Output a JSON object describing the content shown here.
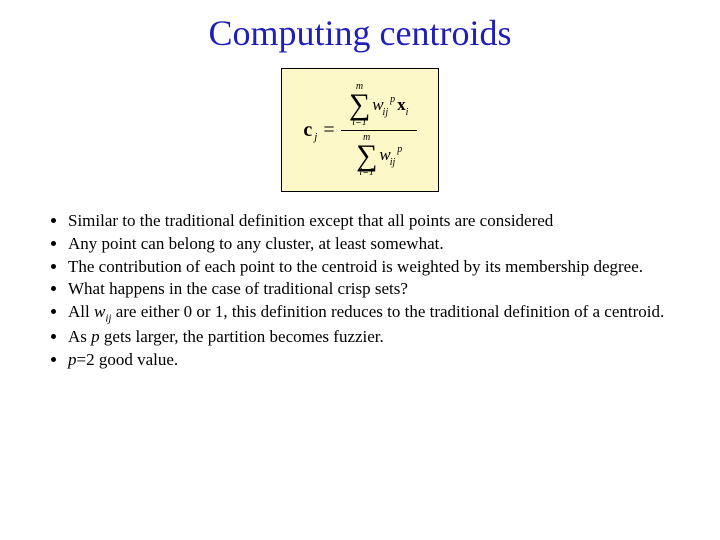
{
  "title": {
    "text": "Computing centroids",
    "color": "#1f1fb8",
    "fontsize": 36
  },
  "formula": {
    "background_color": "#fdf8c8",
    "border_color": "#000000",
    "lhs_var": "c",
    "lhs_sub": "j",
    "sum_upper": "m",
    "sum_lower": "i=1",
    "weight_var": "w",
    "weight_sub": "ij",
    "weight_sup": "p",
    "data_var": "x",
    "data_sub": "i"
  },
  "bullets": [
    {
      "html": "Similar to the traditional definition except that all points are considered"
    },
    {
      "html": "Any point can belong to any cluster, at least somewhat."
    },
    {
      "html": "The contribution of each point to the centroid is weighted by its membership degree."
    },
    {
      "html": "What happens in the case of traditional crisp sets?"
    },
    {
      "html": "All <span class=\"ital\">w<span class=\"subscript\">ij</span></span> are either 0 or 1, this definition reduces to the traditional definition of a centroid."
    },
    {
      "html": "As <span class=\"ital\">p</span> gets larger, the partition becomes fuzzier."
    },
    {
      "html": "<span class=\"ital\">p</span>=2 good value."
    }
  ],
  "colors": {
    "page_bg": "#ffffff",
    "text": "#000000"
  }
}
